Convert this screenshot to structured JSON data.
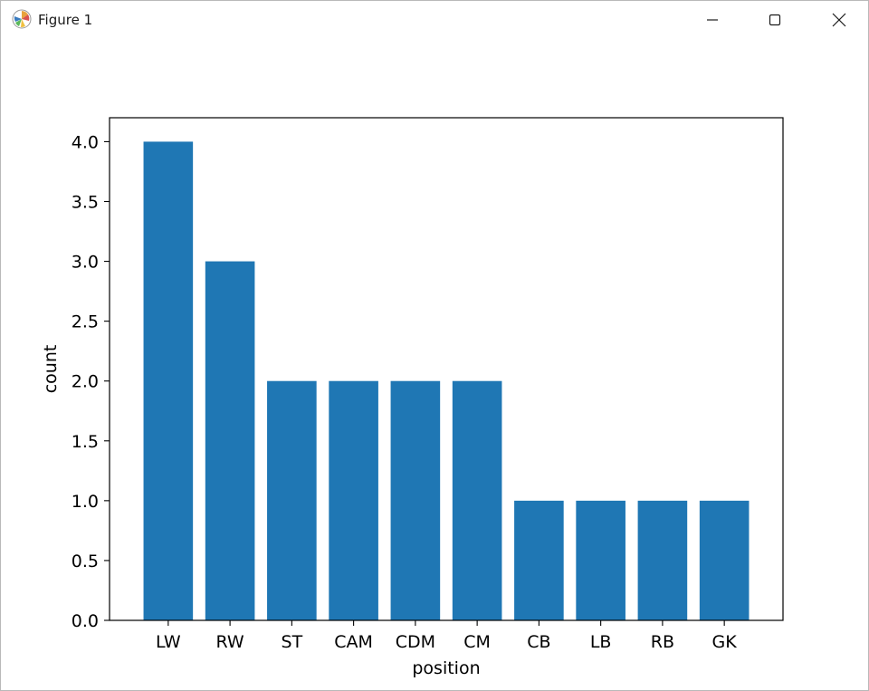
{
  "window": {
    "title": "Figure 1",
    "icon": "matplotlib-logo-icon",
    "controls": [
      "minimize-icon",
      "maximize-icon",
      "close-icon"
    ]
  },
  "chart_data": {
    "type": "bar",
    "categories": [
      "LW",
      "RW",
      "ST",
      "CAM",
      "CDM",
      "CM",
      "CB",
      "LB",
      "RB",
      "GK"
    ],
    "values": [
      4,
      3,
      2,
      2,
      2,
      2,
      1,
      1,
      1,
      1
    ],
    "title": "",
    "xlabel": "position",
    "ylabel": "count",
    "ylim": [
      0,
      4.2
    ],
    "yticks": [
      "0.0",
      "0.5",
      "1.0",
      "1.5",
      "2.0",
      "2.5",
      "3.0",
      "3.5",
      "4.0"
    ],
    "grid": false,
    "bar_color": "#1f77b4"
  }
}
